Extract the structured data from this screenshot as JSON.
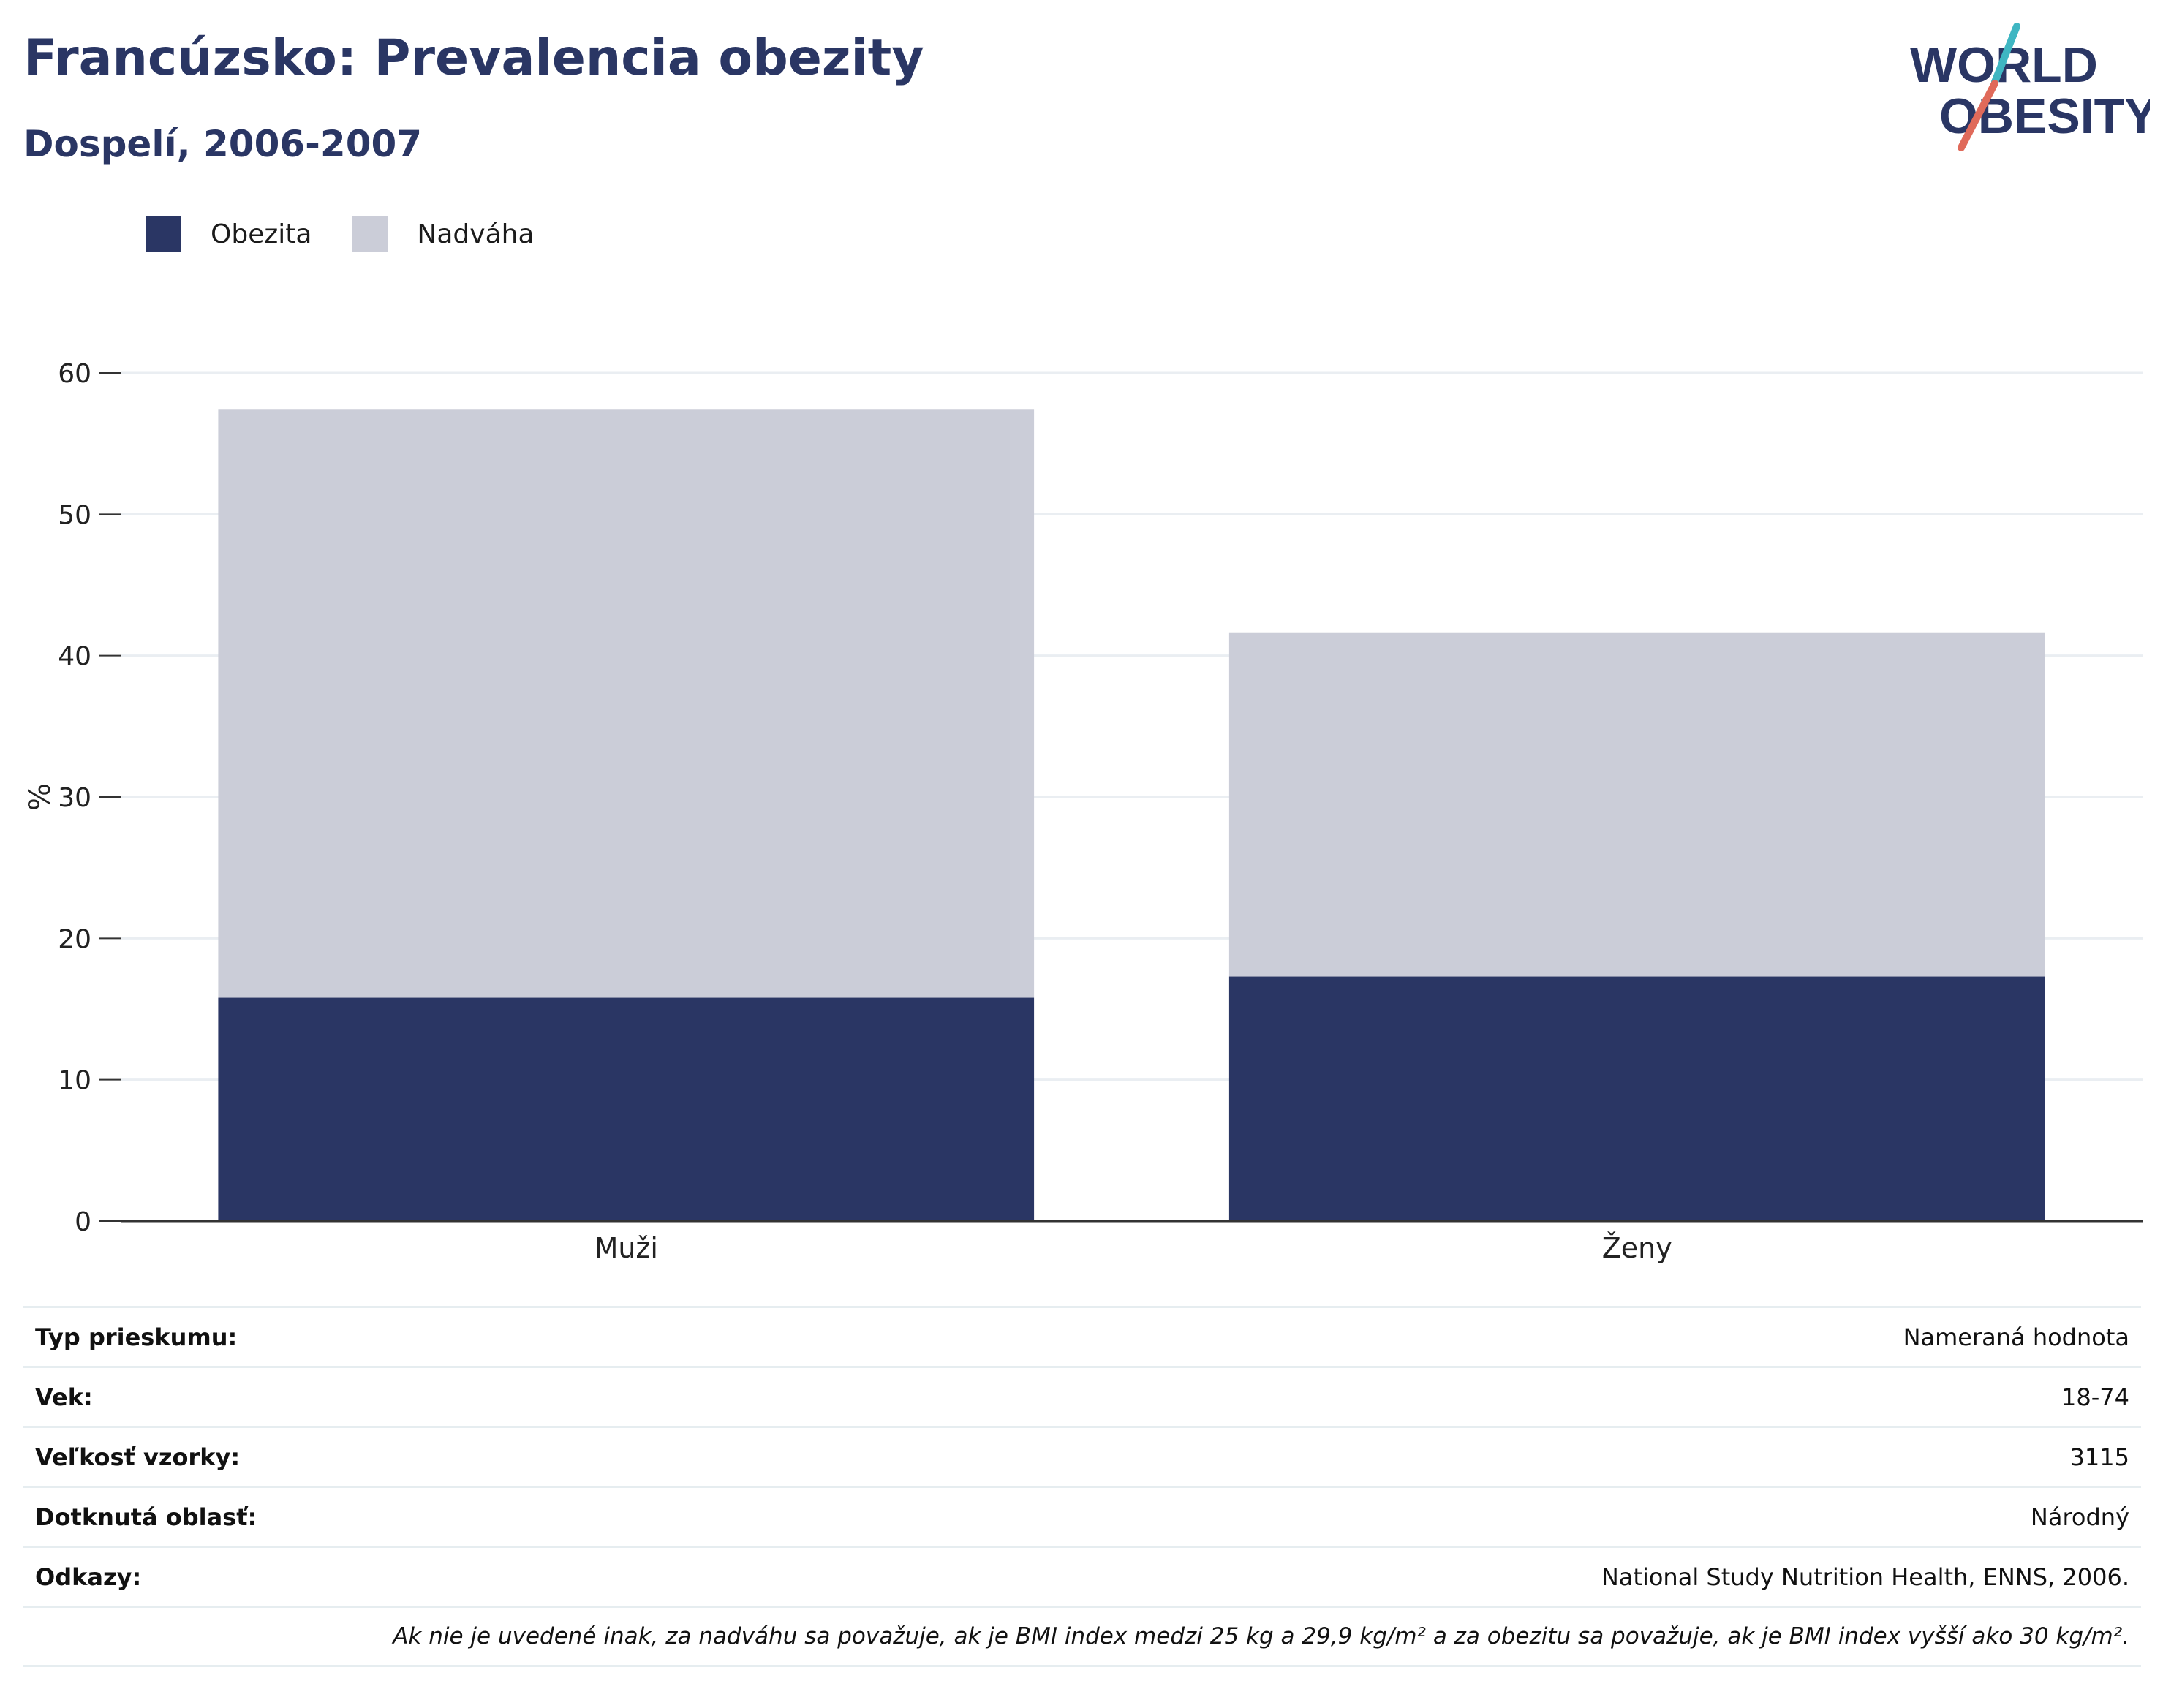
{
  "header": {
    "title": "Francúzsko: Prevalencia obezity",
    "subtitle": "Dospelí, 2006-2007"
  },
  "logo": {
    "line1": "WORLD",
    "line2": "OBESITY",
    "slash_color_top": "#3fb6c2",
    "slash_color_bottom": "#e06a5a"
  },
  "colors": {
    "obesity": "#2a3664",
    "overweight": "#cbcdd8",
    "grid": "#eaeef2",
    "axis": "#333333"
  },
  "chart_data": {
    "type": "bar",
    "stacked": true,
    "categories": [
      "Muži",
      "Ženy"
    ],
    "series": [
      {
        "name": "Obezita",
        "values": [
          15.8,
          17.3
        ]
      },
      {
        "name": "Nadváha",
        "values": [
          41.6,
          24.3
        ]
      }
    ],
    "ylabel": "%",
    "ylim": [
      0,
      60
    ],
    "yticks": [
      0,
      10,
      20,
      30,
      40,
      50,
      60
    ],
    "grid": true,
    "legend": "top-left"
  },
  "info": {
    "rows": [
      {
        "label": "Typ prieskumu:",
        "value": "Nameraná hodnota"
      },
      {
        "label": "Vek:",
        "value": "18-74"
      },
      {
        "label": "Veľkosť vzorky:",
        "value": "3115"
      },
      {
        "label": "Dotknutá oblasť:",
        "value": "Národný"
      },
      {
        "label": "Odkazy:",
        "value": "National Study Nutrition Health, ENNS, 2006."
      }
    ],
    "note": "Ak nie je uvedené inak, za nadváhu sa považuje, ak je BMI index medzi 25 kg a 29,9 kg/m² a za obezitu sa považuje, ak je BMI index vyšší ako 30 kg/m²."
  }
}
